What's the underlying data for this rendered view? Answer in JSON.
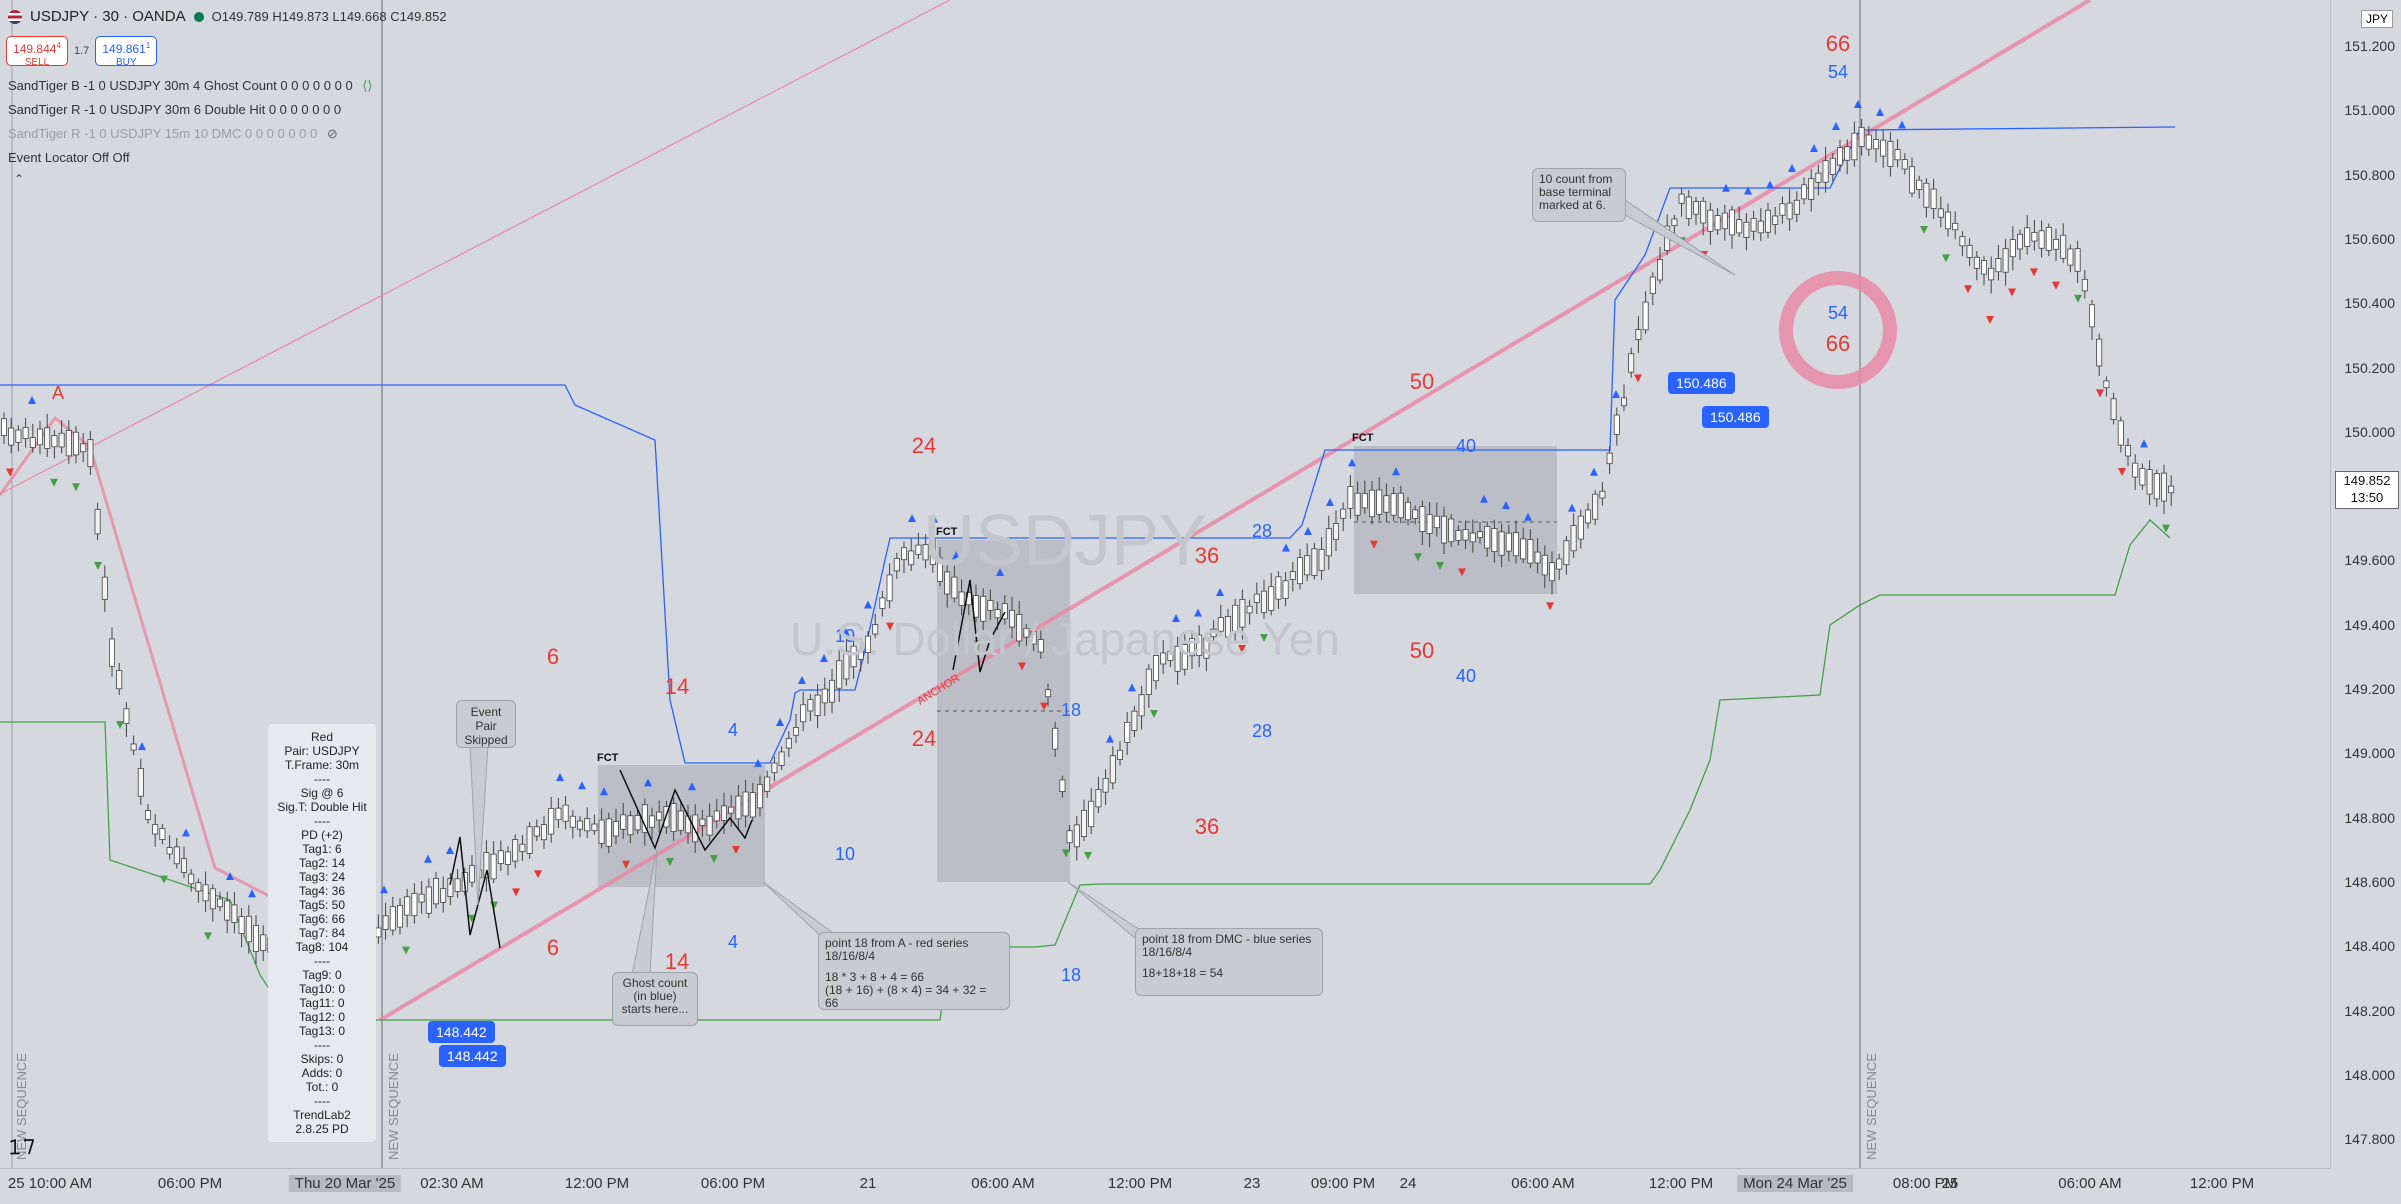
{
  "header": {
    "symbol_title": "USDJPY · 30 · OANDA",
    "open": "O149.789",
    "high": "H149.873",
    "low": "L149.668",
    "close": "C149.852"
  },
  "trade": {
    "sell_price": "149.844",
    "sell_sup": "4",
    "sell_label": "SELL",
    "spread": "1.7",
    "buy_price": "149.861",
    "buy_sup": "1",
    "buy_label": "BUY"
  },
  "indicators": [
    {
      "text": "SandTiger B -1 0 USDJPY 30m 4 Ghost Count 0 0 0 0 0 0 0"
    },
    {
      "text": "SandTiger R -1 0 USDJPY 30m 6 Double Hit 0 0 0 0 0 0 0"
    },
    {
      "text": "SandTiger R -1 0 USDJPY 15m 10 DMC 0 0 0 0 0 0 0"
    },
    {
      "text": "Event Locator Off Off"
    }
  ],
  "currency_button": "JPY",
  "price_axis": [
    "151.200",
    "151.000",
    "150.800",
    "150.600",
    "150.400",
    "150.200",
    "150.000",
    "149.800",
    "149.600",
    "149.400",
    "149.200",
    "149.000",
    "148.800",
    "148.600",
    "148.400",
    "148.200",
    "148.000",
    "147.800"
  ],
  "current_price": {
    "value": "149.852",
    "countdown": "13:50"
  },
  "time_axis": [
    "25 10:00 AM",
    "06:00 PM",
    "Thu 20 Mar '25",
    "02:30 AM",
    "12:00 PM",
    "06:00 PM",
    "21",
    "06:00 AM",
    "12:00 PM",
    "23",
    "09:00 PM",
    "24",
    "06:00 AM",
    "12:00 PM",
    "Mon 24 Mar '25",
    "08:00 PM",
    "25",
    "06:00 AM",
    "12:00 PM"
  ],
  "watermark": {
    "symbol": "USDJPY",
    "name": "U.S. Dollar / Japanese Yen"
  },
  "info_panel": [
    "Red",
    "Pair: USDJPY",
    "T.Frame: 30m",
    "----",
    "Sig @ 6",
    "Sig.T: Double Hit",
    "----",
    "PD (+2)",
    "Tag1: 6",
    "Tag2: 14",
    "Tag3: 24",
    "Tag4: 36",
    "Tag5: 50",
    "Tag6: 66",
    "Tag7: 84",
    "Tag8: 104",
    "----",
    "Tag9: 0",
    "Tag10: 0",
    "Tag11: 0",
    "Tag12: 0",
    "Tag13: 0",
    "----",
    "Skips: 0",
    "Adds: 0",
    "Tot.: 0",
    "----",
    "TrendLab2",
    "2.8.25 PD"
  ],
  "callouts": {
    "event_pair": "Event Pair Skipped",
    "ghost": "Ghost count (in blue) starts here...",
    "red_series_title": "point 18 from A - red series",
    "red_series_seq": "18/16/8/4",
    "red_series_calc1": "18 * 3 + 8 + 4 = 66",
    "red_series_calc2": "(18 + 16) + (8 × 4) = 34 + 32 = 66",
    "blue_series_title": "point 18 from DMC - blue series",
    "blue_series_seq": "18/16/8/4",
    "blue_series_calc": "18+18+18 = 54",
    "ten_count": "10 count from base terminal marked at 6."
  },
  "price_boxes": [
    "148.442",
    "148.442",
    "150.486",
    "150.486"
  ],
  "red_numbers": [
    "6",
    "6",
    "14",
    "14",
    "24",
    "24",
    "36",
    "36",
    "50",
    "50",
    "66",
    "66"
  ],
  "blue_numbers": [
    "4",
    "4",
    "10",
    "10",
    "18",
    "18",
    "28",
    "28",
    "40",
    "40",
    "54",
    "54"
  ],
  "small_labels": {
    "fct": "FCT",
    "anchor": "ANCHOR",
    "new_seq": "NEW SEQUENCE",
    "a": "A"
  },
  "colors": {
    "up": "#ffffff",
    "down": "#ffffff",
    "blue_line": "#2962ff",
    "green_line": "#43a047",
    "red_line": "#e88aa3",
    "red": "#e53935",
    "blue": "#2962ff"
  }
}
